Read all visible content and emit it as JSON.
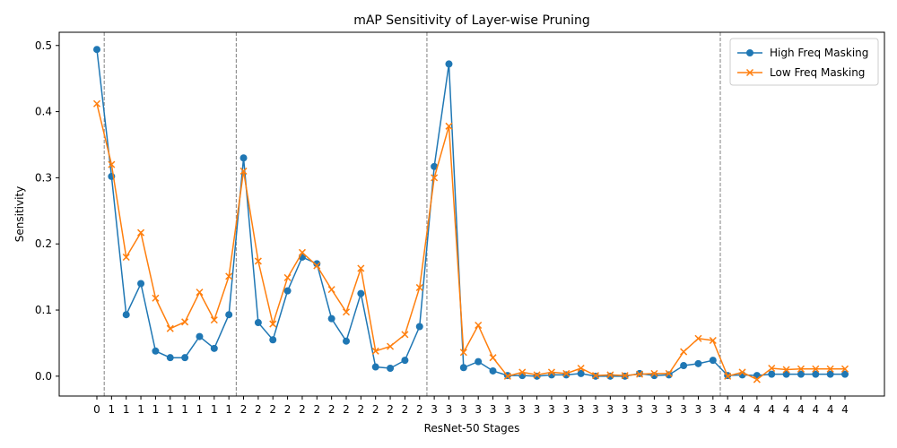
{
  "chart_data": {
    "type": "line",
    "title": "mAP Sensitivity of Layer-wise Pruning",
    "xlabel": "ResNet-50 Stages",
    "ylabel": "Sensitivity",
    "ylim": [
      -0.03,
      0.52
    ],
    "yticks": [
      0.0,
      0.1,
      0.2,
      0.3,
      0.4,
      0.5
    ],
    "ytick_labels": [
      "0.0",
      "0.1",
      "0.2",
      "0.3",
      "0.4",
      "0.5"
    ],
    "x_tick_labels": [
      "0",
      "1",
      "1",
      "1",
      "1",
      "1",
      "1",
      "1",
      "1",
      "1",
      "2",
      "2",
      "2",
      "2",
      "2",
      "2",
      "2",
      "2",
      "2",
      "2",
      "2",
      "2",
      "2",
      "3",
      "3",
      "3",
      "3",
      "3",
      "3",
      "3",
      "3",
      "3",
      "3",
      "3",
      "3",
      "3",
      "3",
      "3",
      "3",
      "3",
      "3",
      "3",
      "3",
      "4",
      "4",
      "4",
      "4",
      "4",
      "4",
      "4",
      "4",
      "4"
    ],
    "stage_boundaries": [
      1,
      10,
      23,
      43
    ],
    "legend_position": "top-right",
    "grid": false,
    "series": [
      {
        "name": "High Freq Masking",
        "color": "#1f77b4",
        "marker": "circle",
        "values": [
          0.494,
          0.302,
          0.093,
          0.14,
          0.038,
          0.028,
          0.028,
          0.06,
          0.042,
          0.093,
          0.33,
          0.081,
          0.055,
          0.129,
          0.18,
          0.17,
          0.087,
          0.053,
          0.125,
          0.014,
          0.012,
          0.024,
          0.075,
          0.317,
          0.472,
          0.013,
          0.022,
          0.008,
          0.001,
          0.001,
          0.0,
          0.002,
          0.002,
          0.004,
          0.0,
          0.0,
          0.0,
          0.004,
          0.001,
          0.002,
          0.016,
          0.019,
          0.024,
          0.001,
          0.002,
          0.001,
          0.003,
          0.003,
          0.003,
          0.003,
          0.003,
          0.003
        ]
      },
      {
        "name": "Low Freq Masking",
        "color": "#ff7f0e",
        "marker": "x",
        "values": [
          0.412,
          0.32,
          0.18,
          0.217,
          0.118,
          0.072,
          0.082,
          0.127,
          0.085,
          0.151,
          0.31,
          0.174,
          0.079,
          0.149,
          0.187,
          0.167,
          0.131,
          0.097,
          0.163,
          0.038,
          0.045,
          0.063,
          0.134,
          0.3,
          0.378,
          0.036,
          0.077,
          0.028,
          0.0,
          0.006,
          0.002,
          0.006,
          0.004,
          0.012,
          0.001,
          0.002,
          0.001,
          0.003,
          0.004,
          0.004,
          0.037,
          0.057,
          0.054,
          0.0,
          0.006,
          -0.005,
          0.012,
          0.01,
          0.011,
          0.011,
          0.011,
          0.011
        ]
      }
    ]
  }
}
